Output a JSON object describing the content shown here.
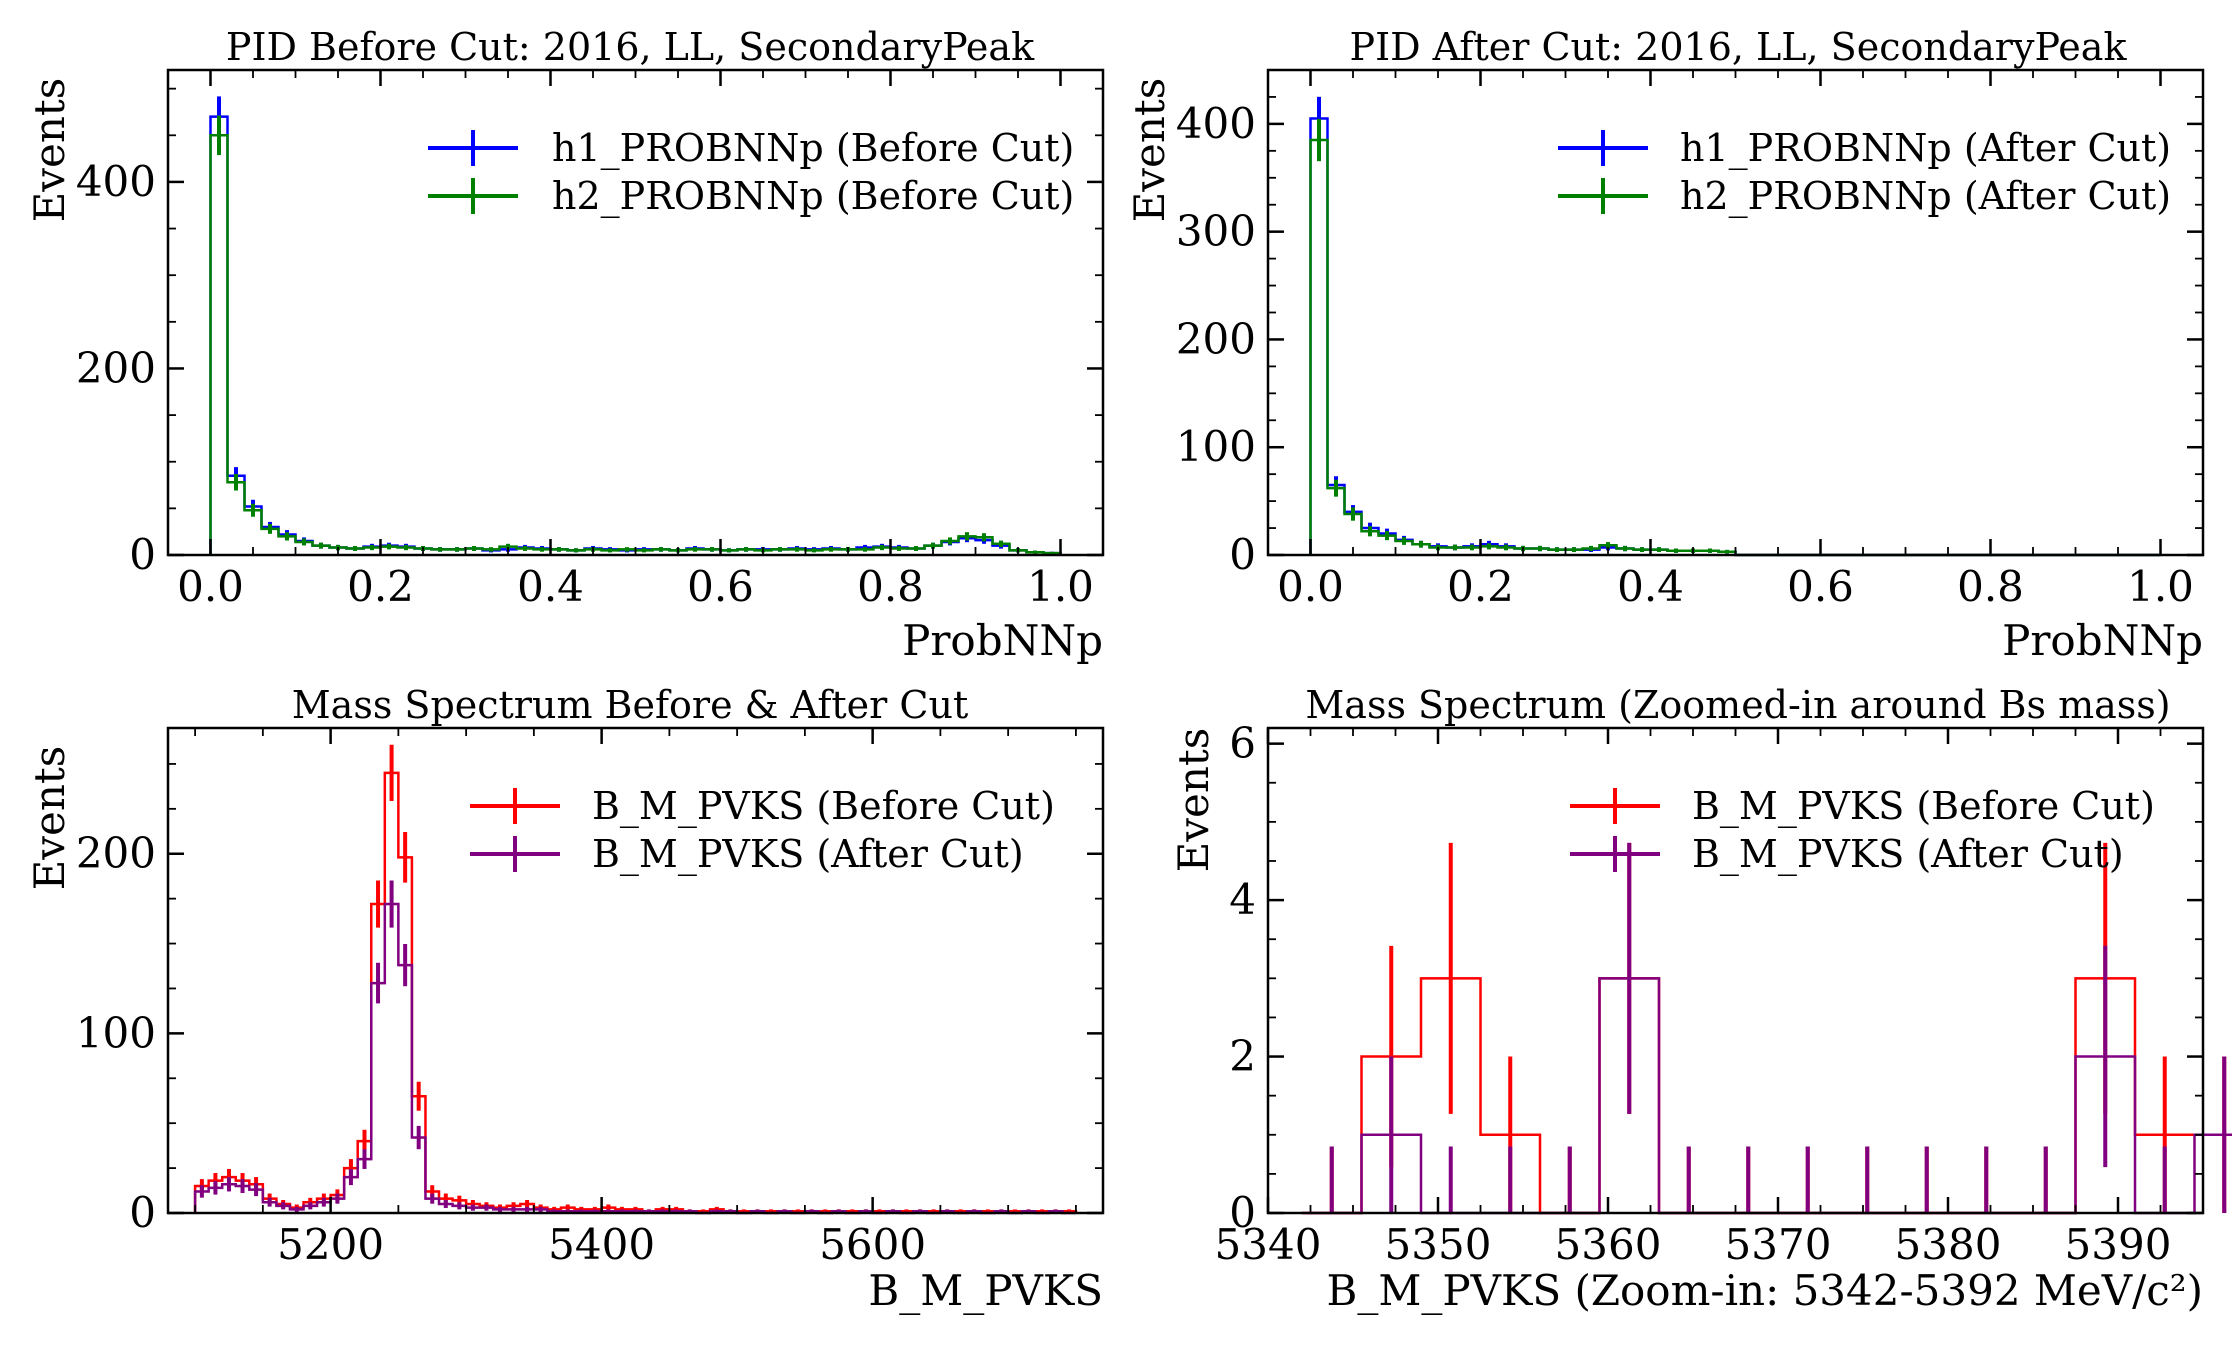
{
  "figure": {
    "panels": [
      {
        "id": "pid-before",
        "title": "PID Before Cut: 2016, LL, SecondaryPeak",
        "xlabel": "ProbNNp",
        "ylabel": "Events",
        "x_ticks": [
          "0.0",
          "0.2",
          "0.4",
          "0.6",
          "0.8",
          "1.0"
        ],
        "y_ticks": [
          "0",
          "200",
          "400"
        ],
        "legend": [
          "h1_PROBNNp (Before Cut)",
          "h2_PROBNNp (Before Cut)"
        ]
      },
      {
        "id": "pid-after",
        "title": "PID After Cut: 2016, LL, SecondaryPeak",
        "xlabel": "ProbNNp",
        "ylabel": "Events",
        "x_ticks": [
          "0.0",
          "0.2",
          "0.4",
          "0.6",
          "0.8",
          "1.0"
        ],
        "y_ticks": [
          "0",
          "100",
          "200",
          "300",
          "400"
        ],
        "legend": [
          "h1_PROBNNp (After Cut)",
          "h2_PROBNNp (After Cut)"
        ]
      },
      {
        "id": "mass-full",
        "title": "Mass Spectrum Before & After Cut",
        "xlabel": "B_M_PVKS",
        "ylabel": "Events",
        "x_ticks": [
          "5200",
          "5400",
          "5600"
        ],
        "y_ticks": [
          "0",
          "100",
          "200"
        ],
        "legend": [
          "B_M_PVKS (Before Cut)",
          "B_M_PVKS (After Cut)"
        ]
      },
      {
        "id": "mass-zoom",
        "title": "Mass Spectrum (Zoomed-in around Bs mass)",
        "xlabel": "B_M_PVKS (Zoom-in: 5342-5392 MeV/c²)",
        "ylabel": "Events",
        "x_ticks": [
          "5340",
          "5350",
          "5360",
          "5370",
          "5380",
          "5390"
        ],
        "y_ticks": [
          "0",
          "2",
          "4",
          "6"
        ],
        "legend": [
          "B_M_PVKS (Before Cut)",
          "B_M_PVKS (After Cut)"
        ]
      }
    ]
  },
  "chart_data": [
    {
      "type": "histogram",
      "title": "PID Before Cut: 2016, LL, SecondaryPeak",
      "xlabel": "ProbNNp",
      "ylabel": "Events",
      "xlim": [
        -0.05,
        1.05
      ],
      "ylim": [
        0,
        520
      ],
      "bin_edges_start": 0.0,
      "bin_width": 0.02,
      "colors": {
        "h1": "#0000ff",
        "h2": "#008000"
      },
      "series": [
        {
          "name": "h1_PROBNNp (Before Cut)",
          "color": "#0000ff",
          "values": [
            470,
            85,
            52,
            30,
            22,
            15,
            10,
            8,
            7,
            9,
            10,
            9,
            7,
            6,
            6,
            7,
            5,
            6,
            8,
            7,
            6,
            5,
            7,
            6,
            5,
            6,
            6,
            5,
            7,
            6,
            5,
            6,
            6,
            6,
            7,
            6,
            7,
            6,
            8,
            9,
            8,
            7,
            10,
            14,
            18,
            16,
            10,
            5,
            3,
            2
          ]
        },
        {
          "name": "h2_PROBNNp (Before Cut)",
          "color": "#008000",
          "values": [
            450,
            78,
            48,
            28,
            20,
            14,
            10,
            8,
            7,
            8,
            9,
            8,
            7,
            6,
            6,
            7,
            6,
            9,
            7,
            6,
            6,
            5,
            6,
            5,
            6,
            5,
            6,
            5,
            6,
            6,
            5,
            6,
            5,
            6,
            6,
            5,
            6,
            6,
            6,
            8,
            7,
            7,
            10,
            15,
            20,
            19,
            12,
            5,
            3,
            2
          ]
        }
      ]
    },
    {
      "type": "histogram",
      "title": "PID After Cut: 2016, LL, SecondaryPeak",
      "xlabel": "ProbNNp",
      "ylabel": "Events",
      "xlim": [
        -0.05,
        1.05
      ],
      "ylim": [
        0,
        450
      ],
      "bin_edges_start": 0.0,
      "bin_width": 0.02,
      "series": [
        {
          "name": "h1_PROBNNp (After Cut)",
          "color": "#0000ff",
          "values": [
            405,
            65,
            40,
            25,
            20,
            14,
            10,
            8,
            7,
            8,
            10,
            8,
            6,
            6,
            5,
            5,
            5,
            7,
            6,
            5,
            5,
            4,
            4,
            4,
            3,
            0,
            0,
            0,
            0,
            0,
            0,
            0,
            0,
            0,
            0,
            0,
            0,
            0,
            0,
            0,
            0,
            0,
            0,
            0,
            0,
            0,
            0,
            0,
            0,
            0
          ]
        },
        {
          "name": "h2_PROBNNp (After Cut)",
          "color": "#008000",
          "values": [
            385,
            62,
            38,
            22,
            18,
            13,
            10,
            7,
            7,
            7,
            8,
            7,
            6,
            6,
            5,
            5,
            6,
            9,
            6,
            5,
            5,
            4,
            4,
            4,
            3,
            0,
            0,
            0,
            0,
            0,
            0,
            0,
            0,
            0,
            0,
            0,
            0,
            0,
            0,
            0,
            0,
            0,
            0,
            0,
            0,
            0,
            0,
            0,
            0,
            0
          ]
        }
      ]
    },
    {
      "type": "histogram",
      "title": "Mass Spectrum Before & After Cut",
      "xlabel": "B_M_PVKS",
      "ylabel": "Events",
      "xlim": [
        5080,
        5770
      ],
      "ylim": [
        0,
        270
      ],
      "bin_edges_start": 5100,
      "bin_width": 10,
      "series": [
        {
          "name": "B_M_PVKS (Before Cut)",
          "color": "#ff0000",
          "values": [
            15,
            18,
            20,
            18,
            16,
            8,
            5,
            3,
            6,
            8,
            10,
            25,
            40,
            172,
            245,
            198,
            65,
            12,
            8,
            7,
            5,
            4,
            3,
            4,
            5,
            3,
            2,
            3,
            2,
            2,
            3,
            2,
            2,
            1,
            2,
            2,
            1,
            1,
            2,
            1,
            1,
            1,
            1,
            1,
            1,
            1,
            1,
            1,
            1,
            1,
            1,
            1,
            1,
            1,
            1,
            1,
            1,
            1,
            1,
            1,
            1,
            1,
            1,
            1,
            1
          ]
        },
        {
          "name": "B_M_PVKS (After Cut)",
          "color": "#800080",
          "values": [
            12,
            14,
            16,
            15,
            13,
            6,
            4,
            2,
            4,
            6,
            8,
            20,
            30,
            128,
            172,
            138,
            42,
            8,
            5,
            4,
            3,
            3,
            2,
            2,
            2,
            2,
            1,
            1,
            1,
            1,
            1,
            1,
            1,
            1,
            1,
            1,
            1,
            0,
            1,
            1,
            0,
            1,
            0,
            1,
            0,
            1,
            0,
            1,
            0,
            1,
            0,
            1,
            0,
            1,
            0,
            1,
            0,
            1,
            0,
            1,
            0,
            1,
            0,
            1,
            0
          ]
        }
      ]
    },
    {
      "type": "histogram",
      "title": "Mass Spectrum (Zoomed-in around Bs mass)",
      "xlabel": "B_M_PVKS (Zoom-in: 5342-5392 MeV/c²)",
      "ylabel": "Events",
      "xlim": [
        5340,
        5395
      ],
      "ylim": [
        0,
        6.2
      ],
      "bin_edges_start": 5342,
      "bin_width": 3.5,
      "series": [
        {
          "name": "B_M_PVKS (Before Cut)",
          "color": "#ff0000",
          "values": [
            0,
            2,
            3,
            1,
            0,
            3,
            0,
            0,
            0,
            0,
            0,
            0,
            0,
            3,
            1,
            1
          ]
        },
        {
          "name": "B_M_PVKS (After Cut)",
          "color": "#800080",
          "values": [
            0,
            1,
            0,
            0,
            0,
            3,
            0,
            0,
            0,
            0,
            0,
            0,
            0,
            2,
            0,
            1
          ]
        }
      ]
    }
  ]
}
